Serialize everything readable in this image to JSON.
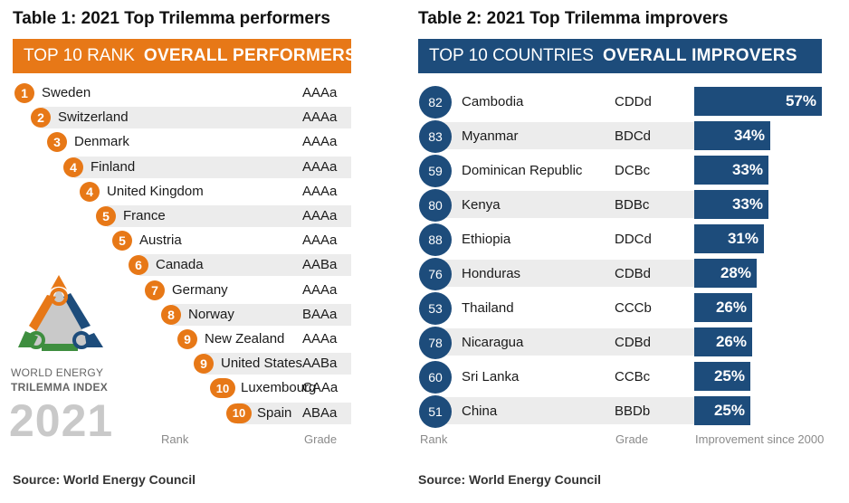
{
  "table1": {
    "title": "Table 1:  2021 Top Trilemma performers",
    "band_light": "TOP 10 RANK",
    "band_bold": "OVERALL PERFORMERS",
    "rows": [
      {
        "rank": "1",
        "country": "Sweden",
        "grade": "AAAa"
      },
      {
        "rank": "2",
        "country": "Switzerland",
        "grade": "AAAa"
      },
      {
        "rank": "3",
        "country": "Denmark",
        "grade": "AAAa"
      },
      {
        "rank": "4",
        "country": "Finland",
        "grade": "AAAa"
      },
      {
        "rank": "4",
        "country": "United Kingdom",
        "grade": "AAAa"
      },
      {
        "rank": "5",
        "country": "France",
        "grade": "AAAa"
      },
      {
        "rank": "5",
        "country": "Austria",
        "grade": "AAAa"
      },
      {
        "rank": "6",
        "country": "Canada",
        "grade": "AABa"
      },
      {
        "rank": "7",
        "country": "Germany",
        "grade": "AAAa"
      },
      {
        "rank": "8",
        "country": "Norway",
        "grade": "BAAa"
      },
      {
        "rank": "9",
        "country": "New Zealand",
        "grade": "AAAa"
      },
      {
        "rank": "9",
        "country": "United States",
        "grade": "AABa"
      },
      {
        "rank": "10",
        "country": "Luxembourg",
        "grade": "CAAa"
      },
      {
        "rank": "10",
        "country": "Spain",
        "grade": "ABAa"
      }
    ],
    "footer_rank": "Rank",
    "footer_grade": "Grade",
    "source": "Source: World Energy Council"
  },
  "logo": {
    "line1": "WORLD ENERGY",
    "line2": "TRILEMMA INDEX",
    "year": "2021",
    "colors": {
      "orange": "#e77817",
      "blue": "#1d4c7b",
      "green": "#3e8e3f",
      "grey": "#c9c9c9"
    }
  },
  "table2": {
    "title": "Table 2:   2021 Top Trilemma improvers",
    "band_light": "TOP 10 COUNTRIES",
    "band_bold": "OVERALL IMPROVERS",
    "rows": [
      {
        "rank": "82",
        "country": "Cambodia",
        "grade": "CDDd",
        "improvement": "57%",
        "value": 57
      },
      {
        "rank": "83",
        "country": "Myanmar",
        "grade": "BDCd",
        "improvement": "34%",
        "value": 34
      },
      {
        "rank": "59",
        "country": "Dominican Republic",
        "grade": "DCBc",
        "improvement": "33%",
        "value": 33
      },
      {
        "rank": "80",
        "country": "Kenya",
        "grade": "BDBc",
        "improvement": "33%",
        "value": 33
      },
      {
        "rank": "88",
        "country": "Ethiopia",
        "grade": "DDCd",
        "improvement": "31%",
        "value": 31
      },
      {
        "rank": "76",
        "country": "Honduras",
        "grade": "CDBd",
        "improvement": "28%",
        "value": 28
      },
      {
        "rank": "53",
        "country": "Thailand",
        "grade": "CCCb",
        "improvement": "26%",
        "value": 26
      },
      {
        "rank": "78",
        "country": "Nicaragua",
        "grade": "CDBd",
        "improvement": "26%",
        "value": 26
      },
      {
        "rank": "60",
        "country": "Sri Lanka",
        "grade": "CCBc",
        "improvement": "25%",
        "value": 25
      },
      {
        "rank": "51",
        "country": "China",
        "grade": "BBDb",
        "improvement": "25%",
        "value": 25
      }
    ],
    "footer_rank": "Rank",
    "footer_grade": "Grade",
    "footer_improvement": "Improvement since 2000",
    "source": "Source: World Energy Council"
  },
  "colors": {
    "orange": "#e77817",
    "blue": "#1d4c7b",
    "shade": "#ececec"
  }
}
